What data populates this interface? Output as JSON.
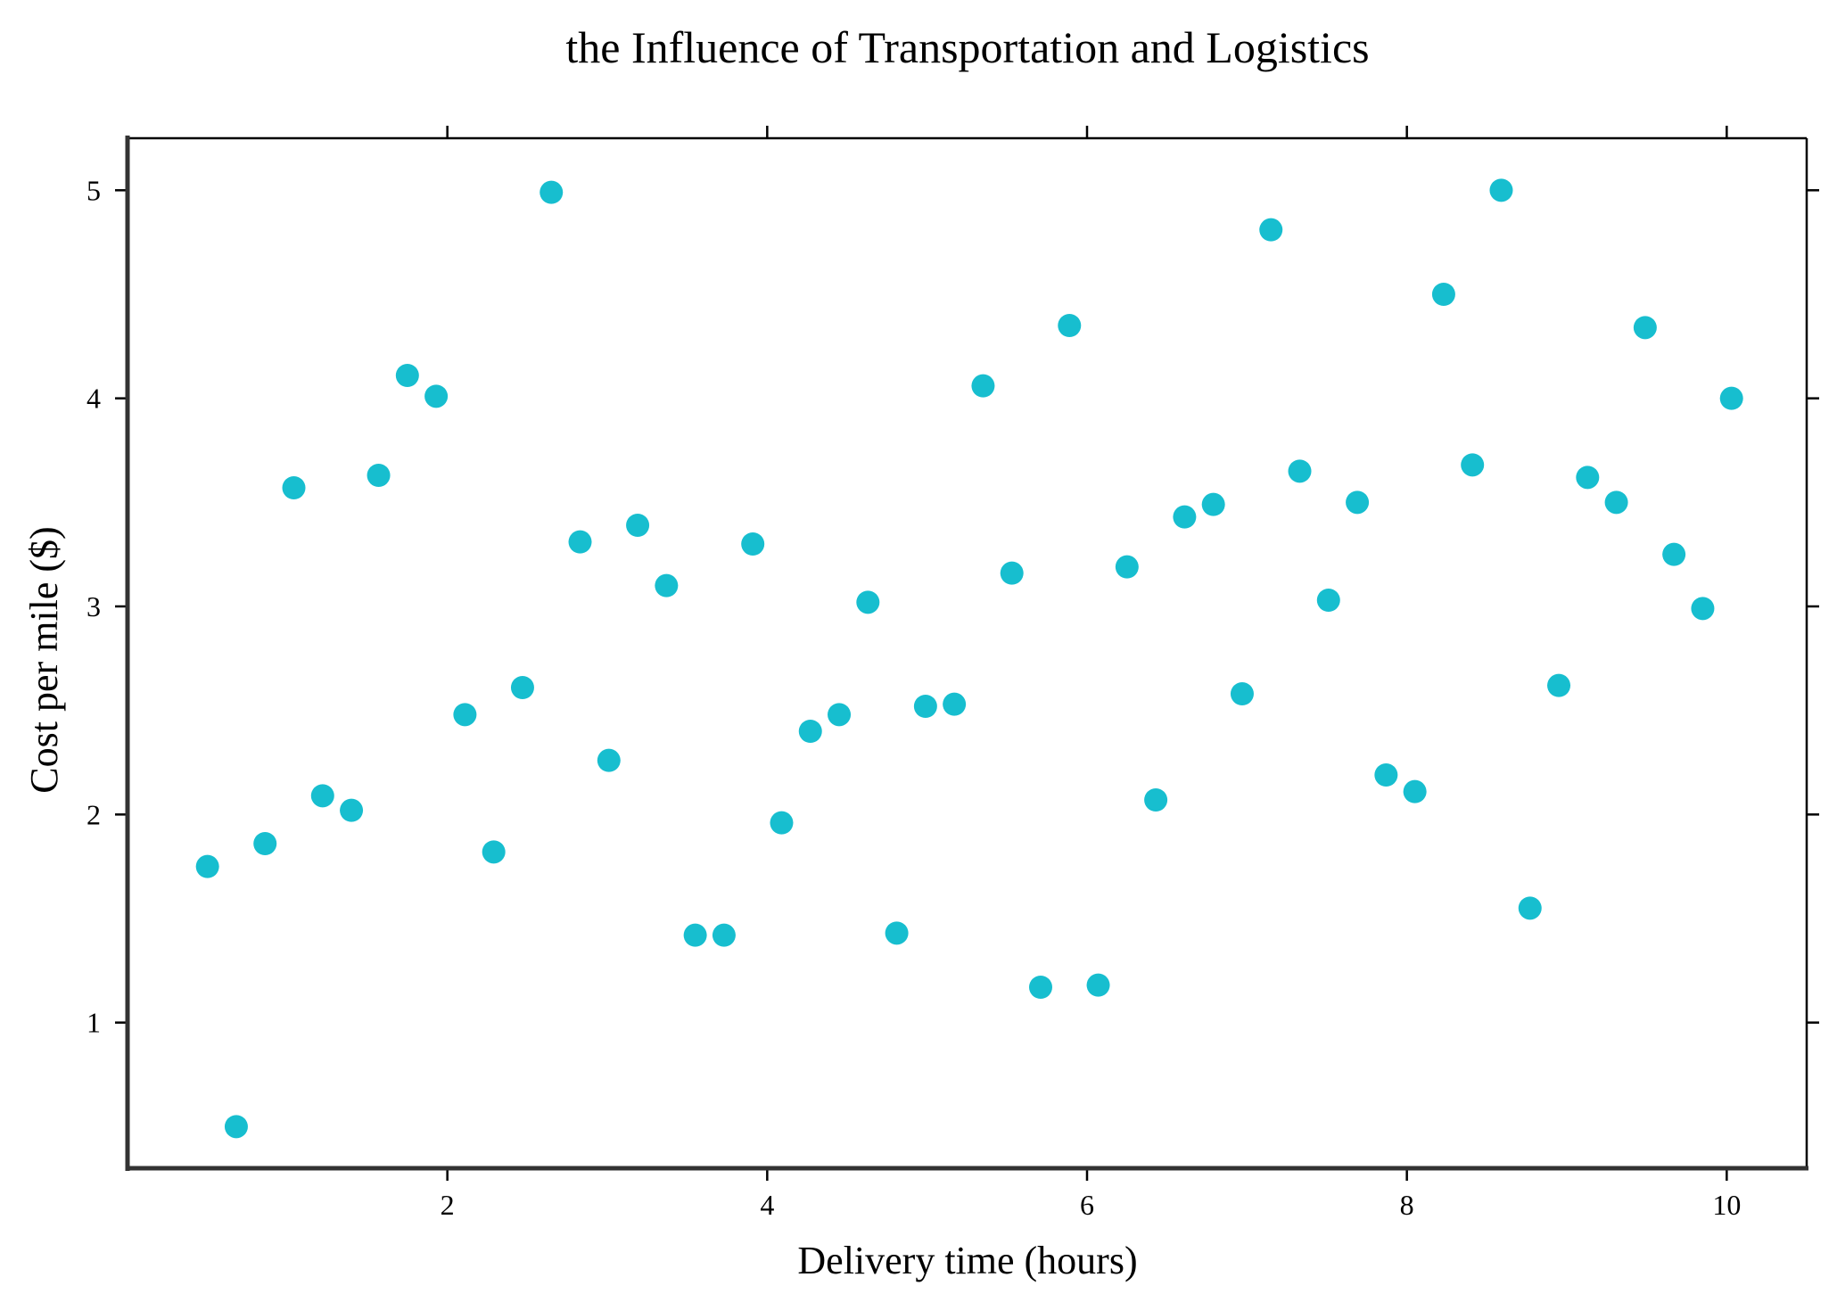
{
  "chart_data": {
    "type": "scatter",
    "title": "the Influence of Transportation and Logistics",
    "xlabel": "Delivery time (hours)",
    "ylabel": "Cost per mile ($)",
    "xlim": [
      0.0,
      10.5
    ],
    "ylim": [
      0.3,
      5.25
    ],
    "xticks": [
      2,
      4,
      6,
      8,
      10
    ],
    "yticks": [
      1,
      2,
      3,
      4,
      5
    ],
    "grid": false,
    "legend": "none",
    "marker_color": "#17becf",
    "series": [
      {
        "points": [
          [
            0.5,
            1.75
          ],
          [
            0.68,
            0.5
          ],
          [
            0.86,
            1.86
          ],
          [
            1.04,
            3.57
          ],
          [
            1.22,
            2.09
          ],
          [
            1.4,
            2.02
          ],
          [
            1.57,
            3.63
          ],
          [
            1.75,
            4.11
          ],
          [
            1.93,
            4.01
          ],
          [
            2.11,
            2.48
          ],
          [
            2.29,
            1.82
          ],
          [
            2.47,
            2.61
          ],
          [
            2.65,
            4.99
          ],
          [
            2.83,
            3.31
          ],
          [
            3.01,
            2.26
          ],
          [
            3.19,
            3.39
          ],
          [
            3.37,
            3.1
          ],
          [
            3.55,
            1.42
          ],
          [
            3.73,
            1.42
          ],
          [
            3.91,
            3.3
          ],
          [
            4.09,
            1.96
          ],
          [
            4.27,
            2.4
          ],
          [
            4.45,
            2.48
          ],
          [
            4.63,
            3.02
          ],
          [
            4.81,
            1.43
          ],
          [
            4.99,
            2.52
          ],
          [
            5.17,
            2.53
          ],
          [
            5.35,
            4.06
          ],
          [
            5.53,
            3.16
          ],
          [
            5.71,
            1.17
          ],
          [
            5.89,
            4.35
          ],
          [
            6.07,
            1.18
          ],
          [
            6.25,
            3.19
          ],
          [
            6.43,
            2.07
          ],
          [
            6.61,
            3.43
          ],
          [
            6.79,
            3.49
          ],
          [
            6.97,
            2.58
          ],
          [
            7.15,
            4.81
          ],
          [
            7.33,
            3.65
          ],
          [
            7.51,
            3.03
          ],
          [
            7.69,
            3.5
          ],
          [
            7.87,
            2.19
          ],
          [
            8.05,
            2.11
          ],
          [
            8.23,
            4.5
          ],
          [
            8.41,
            3.68
          ],
          [
            8.59,
            5.0
          ],
          [
            8.77,
            1.55
          ],
          [
            8.95,
            2.62
          ],
          [
            9.13,
            3.62
          ],
          [
            9.31,
            3.5
          ],
          [
            9.49,
            4.34
          ],
          [
            9.67,
            3.25
          ],
          [
            9.85,
            2.99
          ],
          [
            10.03,
            4.0
          ]
        ]
      }
    ]
  }
}
